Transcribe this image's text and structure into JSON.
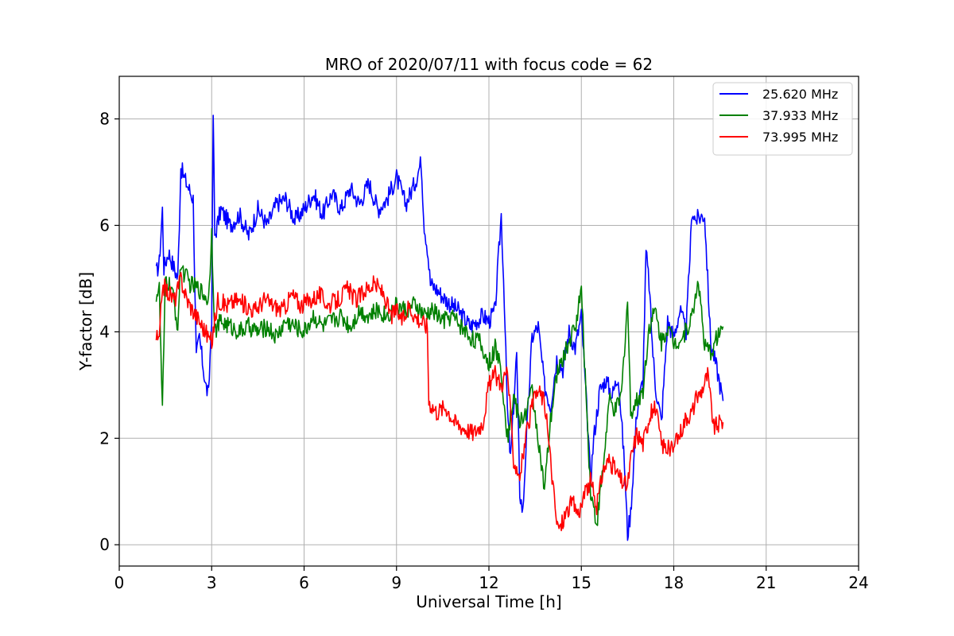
{
  "chart_data": {
    "type": "line",
    "title": "MRO of 2020/07/11 with focus code = 62",
    "xlabel": "Universal Time [h]",
    "ylabel": "Y-factor [dB]",
    "xlim": [
      0,
      24
    ],
    "ylim": [
      -0.4,
      8.8
    ],
    "xticks": [
      0,
      3,
      6,
      9,
      12,
      15,
      18,
      21,
      24
    ],
    "yticks": [
      0,
      2,
      4,
      6,
      8
    ],
    "grid": true,
    "legend_position": "top-right",
    "series": [
      {
        "name": "25.620 MHz",
        "color": "#0000ff",
        "x": [
          1.2,
          1.3,
          1.4,
          1.45,
          1.6,
          1.9,
          2.0,
          2.1,
          2.4,
          2.5,
          2.6,
          2.8,
          2.9,
          3.0,
          3.05,
          3.1,
          3.3,
          3.6,
          3.9,
          4.2,
          4.5,
          4.8,
          5.1,
          5.4,
          5.7,
          6.0,
          6.3,
          6.6,
          6.9,
          7.2,
          7.5,
          7.8,
          8.1,
          8.4,
          8.7,
          9.0,
          9.3,
          9.6,
          9.8,
          9.9,
          10.0,
          10.1,
          10.3,
          10.6,
          11.0,
          11.4,
          11.8,
          12.0,
          12.2,
          12.4,
          12.5,
          12.6,
          12.7,
          12.9,
          13.0,
          13.1,
          13.2,
          13.4,
          13.6,
          13.8,
          14.0,
          14.2,
          14.4,
          14.6,
          14.8,
          15.0,
          15.2,
          15.3,
          15.4,
          15.6,
          15.8,
          16.0,
          16.2,
          16.4,
          16.5,
          16.6,
          16.8,
          17.0,
          17.1,
          17.2,
          17.3,
          17.4,
          17.6,
          17.8,
          18.0,
          18.2,
          18.4,
          18.6,
          18.7,
          19.0,
          19.2,
          19.4,
          19.6
        ],
        "y": [
          5.1,
          5.3,
          6.3,
          5.2,
          5.5,
          5.0,
          7.1,
          6.9,
          6.5,
          3.5,
          3.9,
          3.0,
          2.8,
          4.3,
          8.1,
          5.8,
          6.3,
          6.0,
          6.2,
          5.8,
          6.3,
          6.0,
          6.4,
          6.5,
          6.1,
          6.3,
          6.6,
          6.2,
          6.6,
          6.3,
          6.7,
          6.4,
          6.8,
          6.3,
          6.5,
          6.9,
          6.4,
          6.8,
          7.2,
          6.0,
          5.6,
          4.9,
          4.8,
          4.6,
          4.4,
          4.1,
          4.3,
          4.2,
          4.4,
          6.2,
          4.6,
          2.5,
          1.6,
          3.6,
          1.0,
          0.6,
          1.8,
          3.9,
          4.1,
          3.0,
          2.6,
          3.5,
          3.3,
          4.0,
          3.7,
          4.3,
          2.3,
          1.2,
          2.0,
          2.9,
          3.1,
          2.8,
          3.2,
          1.5,
          0.2,
          0.6,
          2.5,
          3.1,
          5.5,
          4.9,
          3.8,
          3.0,
          2.3,
          4.2,
          3.9,
          4.4,
          4.0,
          6.3,
          6.1,
          6.2,
          3.8,
          3.3,
          2.7
        ]
      },
      {
        "name": "37.933 MHz",
        "color": "#008000",
        "x": [
          1.2,
          1.3,
          1.4,
          1.5,
          1.7,
          1.9,
          2.0,
          2.1,
          2.3,
          2.6,
          2.9,
          3.0,
          3.1,
          3.3,
          3.6,
          3.9,
          4.2,
          4.5,
          4.8,
          5.1,
          5.4,
          5.7,
          6.0,
          6.3,
          6.6,
          6.9,
          7.2,
          7.5,
          7.8,
          8.1,
          8.4,
          8.7,
          9.0,
          9.3,
          9.6,
          9.9,
          10.2,
          10.5,
          10.8,
          11.1,
          11.4,
          11.7,
          12.0,
          12.2,
          12.4,
          12.6,
          12.8,
          13.0,
          13.2,
          13.4,
          13.6,
          13.8,
          14.0,
          14.2,
          14.4,
          14.6,
          14.8,
          15.0,
          15.1,
          15.3,
          15.5,
          15.7,
          15.9,
          16.1,
          16.3,
          16.5,
          16.6,
          16.8,
          17.0,
          17.2,
          17.4,
          17.6,
          17.8,
          18.0,
          18.3,
          18.6,
          18.8,
          19.0,
          19.2,
          19.4,
          19.6
        ],
        "y": [
          4.7,
          4.8,
          2.5,
          5.0,
          4.8,
          4.1,
          5.3,
          5.1,
          4.9,
          4.8,
          4.6,
          5.9,
          4.0,
          4.2,
          4.1,
          4.0,
          4.1,
          4.0,
          4.1,
          3.9,
          4.2,
          4.1,
          4.0,
          4.3,
          4.1,
          4.2,
          4.3,
          4.1,
          4.4,
          4.3,
          4.4,
          4.3,
          4.5,
          4.4,
          4.5,
          4.3,
          4.4,
          4.2,
          4.3,
          4.1,
          3.9,
          3.8,
          3.4,
          3.7,
          3.3,
          2.0,
          2.8,
          2.3,
          2.5,
          2.9,
          2.0,
          1.0,
          2.3,
          3.2,
          3.5,
          3.8,
          4.1,
          4.8,
          3.5,
          1.0,
          0.4,
          1.4,
          2.7,
          2.5,
          2.8,
          4.6,
          2.5,
          2.7,
          2.9,
          4.1,
          4.4,
          3.8,
          4.1,
          3.8,
          3.9,
          4.3,
          5.0,
          3.7,
          3.6,
          3.9,
          4.1
        ]
      },
      {
        "name": "73.995 MHz",
        "color": "#ff0000",
        "x": [
          1.2,
          1.3,
          1.4,
          1.5,
          1.8,
          2.0,
          2.2,
          2.5,
          2.8,
          3.0,
          3.2,
          3.5,
          3.8,
          4.1,
          4.4,
          4.7,
          5.0,
          5.3,
          5.6,
          5.9,
          6.2,
          6.5,
          6.8,
          7.1,
          7.4,
          7.7,
          8.0,
          8.3,
          8.6,
          8.8,
          9.0,
          9.2,
          9.4,
          9.6,
          9.8,
          10.0,
          10.05,
          10.3,
          10.6,
          10.9,
          11.2,
          11.5,
          11.8,
          12.0,
          12.2,
          12.4,
          12.6,
          12.8,
          13.0,
          13.2,
          13.4,
          13.6,
          13.8,
          14.0,
          14.2,
          14.3,
          14.5,
          14.7,
          14.9,
          15.1,
          15.3,
          15.5,
          15.7,
          15.9,
          16.1,
          16.3,
          16.5,
          16.6,
          16.8,
          17.0,
          17.2,
          17.4,
          17.6,
          17.8,
          18.0,
          18.2,
          18.4,
          18.6,
          18.7,
          18.9,
          19.1,
          19.3,
          19.5,
          19.6
        ],
        "y": [
          3.9,
          3.8,
          4.9,
          4.8,
          4.6,
          5.0,
          4.6,
          4.3,
          4.0,
          3.8,
          4.6,
          4.5,
          4.6,
          4.5,
          4.4,
          4.6,
          4.5,
          4.4,
          4.7,
          4.5,
          4.6,
          4.7,
          4.5,
          4.6,
          4.8,
          4.6,
          4.8,
          4.9,
          4.7,
          4.3,
          4.4,
          4.2,
          4.5,
          4.3,
          4.2,
          4.1,
          2.7,
          2.5,
          2.6,
          2.3,
          2.2,
          2.1,
          2.3,
          3.0,
          3.2,
          3.0,
          3.3,
          1.6,
          1.3,
          2.0,
          2.6,
          2.9,
          2.7,
          1.6,
          0.4,
          0.3,
          0.6,
          0.8,
          0.6,
          0.9,
          1.2,
          0.7,
          1.4,
          1.6,
          1.4,
          1.2,
          1.1,
          1.6,
          2.1,
          1.9,
          2.4,
          2.6,
          1.9,
          1.8,
          1.8,
          2.1,
          2.4,
          2.5,
          2.7,
          2.9,
          3.2,
          2.2,
          2.3,
          2.3
        ]
      }
    ]
  }
}
